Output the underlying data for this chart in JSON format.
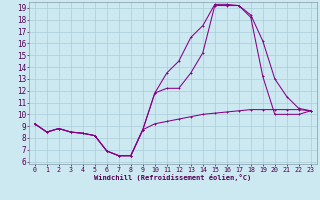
{
  "xlabel": "Windchill (Refroidissement éolien,°C)",
  "xlim": [
    -0.5,
    23.5
  ],
  "ylim": [
    5.8,
    19.5
  ],
  "xticks": [
    0,
    1,
    2,
    3,
    4,
    5,
    6,
    7,
    8,
    9,
    10,
    11,
    12,
    13,
    14,
    15,
    16,
    17,
    18,
    19,
    20,
    21,
    22,
    23
  ],
  "yticks": [
    6,
    7,
    8,
    9,
    10,
    11,
    12,
    13,
    14,
    15,
    16,
    17,
    18,
    19
  ],
  "bg_color": "#cce8f0",
  "grid_color": "#aaccda",
  "line_color": "#880088",
  "line1_x": [
    0,
    1,
    2,
    3,
    4,
    5,
    6,
    7,
    8,
    9,
    10,
    11,
    12,
    13,
    14,
    15,
    16,
    17,
    18,
    19,
    20,
    21,
    22,
    23
  ],
  "line1_y": [
    9.2,
    8.5,
    8.8,
    8.5,
    8.4,
    8.2,
    6.9,
    6.5,
    6.5,
    8.7,
    9.2,
    9.4,
    9.6,
    9.8,
    10.0,
    10.1,
    10.2,
    10.3,
    10.4,
    10.4,
    10.4,
    10.4,
    10.4,
    10.3
  ],
  "line2_x": [
    0,
    1,
    2,
    3,
    4,
    5,
    6,
    7,
    8,
    9,
    10,
    11,
    12,
    13,
    14,
    15,
    16,
    17,
    18,
    19,
    20,
    21,
    22,
    23
  ],
  "line2_y": [
    9.2,
    8.5,
    8.8,
    8.5,
    8.4,
    8.2,
    6.9,
    6.5,
    6.5,
    8.7,
    11.8,
    12.2,
    12.2,
    13.5,
    15.2,
    19.2,
    19.2,
    19.2,
    18.4,
    16.2,
    13.0,
    11.5,
    10.5,
    10.3
  ],
  "line3_x": [
    0,
    1,
    2,
    3,
    4,
    5,
    6,
    7,
    8,
    9,
    10,
    11,
    12,
    13,
    14,
    15,
    16,
    17,
    18,
    19,
    20,
    21,
    22,
    23
  ],
  "line3_y": [
    9.2,
    8.5,
    8.8,
    8.5,
    8.4,
    8.2,
    6.9,
    6.5,
    6.5,
    8.7,
    11.8,
    13.5,
    14.5,
    16.5,
    17.5,
    19.3,
    19.3,
    19.2,
    18.2,
    13.2,
    10.0,
    10.0,
    10.0,
    10.3
  ]
}
